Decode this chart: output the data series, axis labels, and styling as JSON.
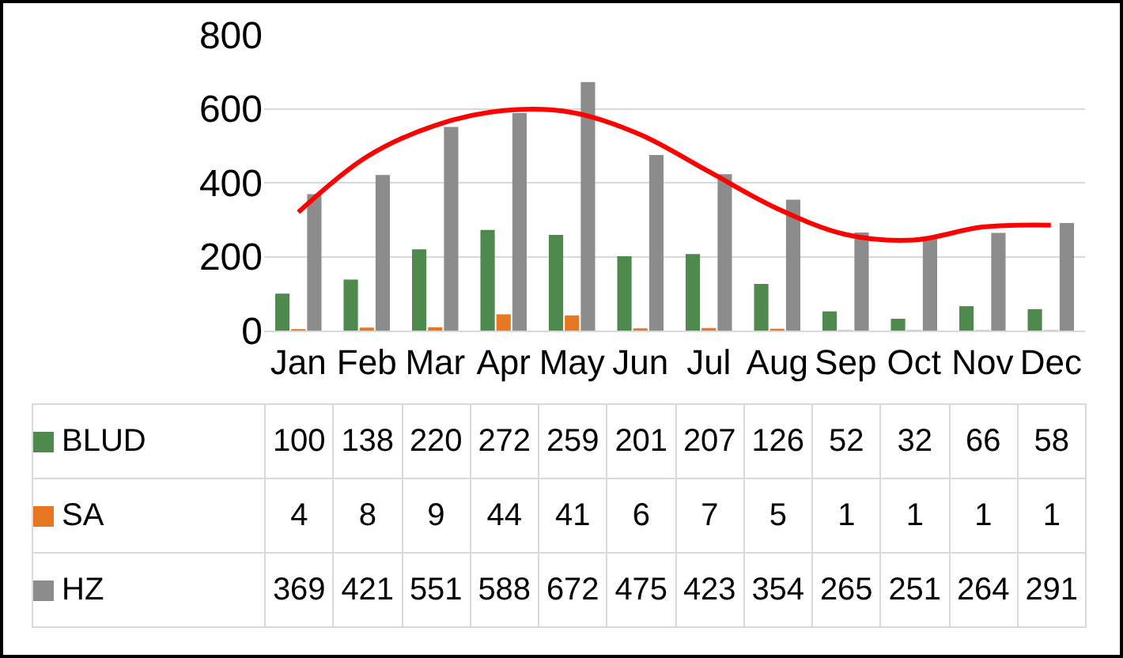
{
  "chart_data": {
    "type": "bar",
    "categories": [
      "Jan",
      "Feb",
      "Mar",
      "Apr",
      "May",
      "Jun",
      "Jul",
      "Aug",
      "Sep",
      "Oct",
      "Nov",
      "Dec"
    ],
    "series": [
      {
        "name": "BLUD",
        "color": "#4e8a4e",
        "values": [
          100,
          138,
          220,
          272,
          259,
          201,
          207,
          126,
          52,
          32,
          66,
          58
        ],
        "value_labels": [
          "100",
          "138",
          "220",
          "272",
          "259",
          "201",
          "207",
          "126",
          "52",
          "32",
          "66",
          "58"
        ]
      },
      {
        "name": "SA",
        "color": "#e87722",
        "values": [
          4,
          8,
          9,
          44,
          41,
          6,
          7,
          5,
          1,
          1,
          1,
          1
        ],
        "value_labels": [
          "4",
          "8",
          "9",
          "44",
          "41",
          "6",
          "7",
          "5",
          "1",
          "1",
          "1",
          "1"
        ]
      },
      {
        "name": "HZ",
        "color": "#8c8c8c",
        "values": [
          369,
          421,
          551,
          588,
          672,
          475,
          423,
          354,
          265,
          251,
          264,
          291
        ],
        "value_labels": [
          "369",
          "421",
          "551",
          "588",
          "672",
          "475",
          "423",
          "354",
          "265",
          "251",
          "264",
          "291"
        ]
      },
      {
        "type": "line",
        "color": "#ff0000",
        "values": [
          320,
          470,
          555,
          595,
          590,
          530,
          430,
          330,
          260,
          245,
          280,
          285
        ]
      }
    ],
    "ylim": [
      0,
      800
    ],
    "yticks": [
      0,
      200,
      400,
      600,
      800
    ],
    "grid": "y",
    "legend": "bottom"
  }
}
